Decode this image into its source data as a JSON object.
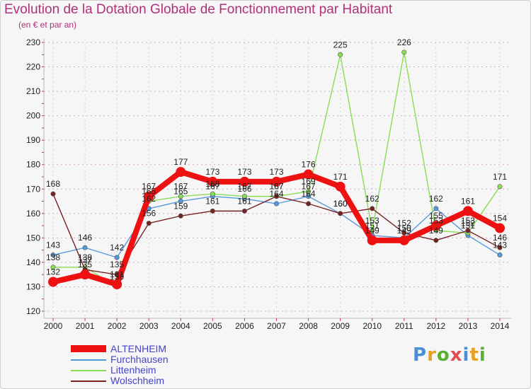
{
  "header": {
    "title": "Evolution de la Dotation Globale de Fonctionnement par Habitant",
    "subtitle": "(en € et par an)"
  },
  "chart_data": {
    "type": "line",
    "title": "Evolution de la Dotation Globale de Fonctionnement par Habitant",
    "subtitle": "(en € et par an)",
    "xlabel": "",
    "ylabel": "",
    "ylim": [
      120,
      230
    ],
    "yticks": [
      120,
      130,
      140,
      150,
      160,
      170,
      180,
      190,
      200,
      210,
      220,
      230
    ],
    "categories": [
      "2000",
      "2001",
      "2002",
      "2003",
      "2004",
      "2005",
      "2006",
      "2007",
      "2008",
      "2009",
      "2010",
      "2011",
      "2012",
      "2013",
      "2014"
    ],
    "grid": "horizontal dotted",
    "legend_position": "bottom-left",
    "series": [
      {
        "name": "ALTENHEIM",
        "color": "#ee1111",
        "values": [
          132,
          135,
          131,
          167,
          177,
          173,
          173,
          173,
          176,
          171,
          149,
          149,
          155,
          161,
          154
        ]
      },
      {
        "name": "Furchhausen",
        "color": "#5599dd",
        "values": [
          143,
          146,
          142,
          162,
          165,
          167,
          166,
          164,
          167,
          160,
          151,
          150,
          162,
          151,
          143
        ]
      },
      {
        "name": "Littenheim",
        "color": "#88dd55",
        "values": [
          138,
          138,
          130,
          165,
          167,
          168,
          167,
          167,
          169,
          225,
          153,
          226,
          153,
          152,
          171
        ]
      },
      {
        "name": "Wolschheim",
        "color": "#772222",
        "values": [
          168,
          137,
          135,
          156,
          159,
          161,
          161,
          167,
          164,
          160,
          162,
          152,
          149,
          153,
          146
        ]
      }
    ]
  },
  "legend": {
    "items": [
      "ALTENHEIM",
      "Furchhausen",
      "Littenheim",
      "Wolschheim"
    ]
  },
  "logo": {
    "text": "Proxiti"
  }
}
